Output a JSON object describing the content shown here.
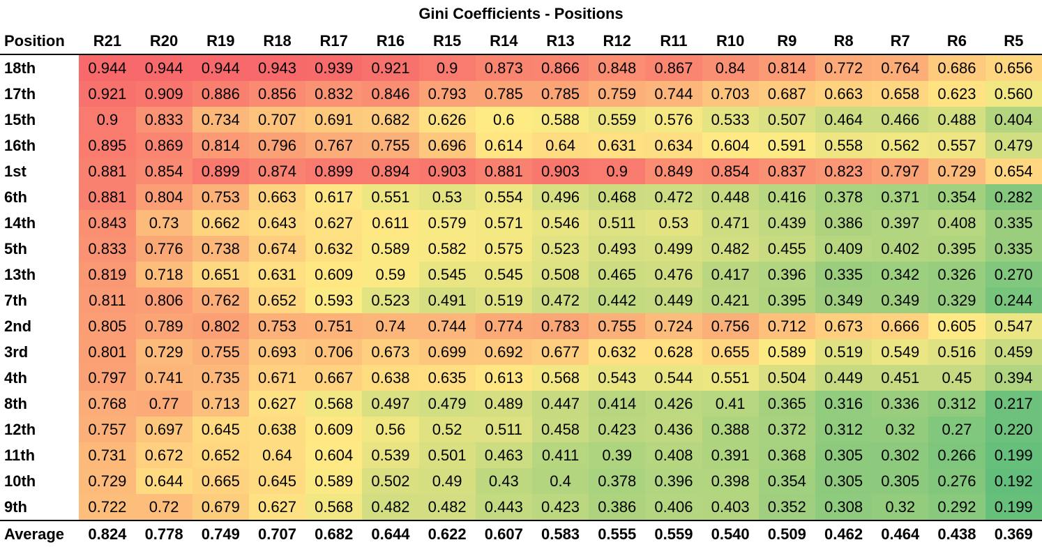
{
  "chart_data": {
    "type": "heatmap",
    "title": "Gini Coefficients - Positions",
    "row_header": "Position",
    "columns": [
      "R21",
      "R20",
      "R19",
      "R18",
      "R17",
      "R16",
      "R15",
      "R14",
      "R13",
      "R12",
      "R11",
      "R10",
      "R9",
      "R8",
      "R7",
      "R6",
      "R5"
    ],
    "rows": [
      {
        "label": "18th",
        "values": [
          "0.944",
          "0.944",
          "0.944",
          "0.943",
          "0.939",
          "0.921",
          "0.9",
          "0.873",
          "0.866",
          "0.848",
          "0.867",
          "0.84",
          "0.814",
          "0.772",
          "0.764",
          "0.686",
          "0.656"
        ]
      },
      {
        "label": "17th",
        "values": [
          "0.921",
          "0.909",
          "0.886",
          "0.856",
          "0.832",
          "0.846",
          "0.793",
          "0.785",
          "0.785",
          "0.759",
          "0.744",
          "0.703",
          "0.687",
          "0.663",
          "0.658",
          "0.623",
          "0.560"
        ]
      },
      {
        "label": "15th",
        "values": [
          "0.9",
          "0.833",
          "0.734",
          "0.707",
          "0.691",
          "0.682",
          "0.626",
          "0.6",
          "0.588",
          "0.559",
          "0.576",
          "0.533",
          "0.507",
          "0.464",
          "0.466",
          "0.488",
          "0.404"
        ]
      },
      {
        "label": "16th",
        "values": [
          "0.895",
          "0.869",
          "0.814",
          "0.796",
          "0.767",
          "0.755",
          "0.696",
          "0.614",
          "0.64",
          "0.631",
          "0.634",
          "0.604",
          "0.591",
          "0.558",
          "0.562",
          "0.557",
          "0.479"
        ]
      },
      {
        "label": "1st",
        "values": [
          "0.881",
          "0.854",
          "0.899",
          "0.874",
          "0.899",
          "0.894",
          "0.903",
          "0.881",
          "0.903",
          "0.9",
          "0.849",
          "0.854",
          "0.837",
          "0.823",
          "0.797",
          "0.729",
          "0.654"
        ]
      },
      {
        "label": "6th",
        "values": [
          "0.881",
          "0.804",
          "0.753",
          "0.663",
          "0.617",
          "0.551",
          "0.53",
          "0.554",
          "0.496",
          "0.468",
          "0.472",
          "0.448",
          "0.416",
          "0.378",
          "0.371",
          "0.354",
          "0.282"
        ]
      },
      {
        "label": "14th",
        "values": [
          "0.843",
          "0.73",
          "0.662",
          "0.643",
          "0.627",
          "0.611",
          "0.579",
          "0.571",
          "0.546",
          "0.511",
          "0.53",
          "0.471",
          "0.439",
          "0.386",
          "0.397",
          "0.408",
          "0.335"
        ]
      },
      {
        "label": "5th",
        "values": [
          "0.833",
          "0.776",
          "0.738",
          "0.674",
          "0.632",
          "0.589",
          "0.582",
          "0.575",
          "0.523",
          "0.493",
          "0.499",
          "0.482",
          "0.455",
          "0.409",
          "0.402",
          "0.395",
          "0.335"
        ]
      },
      {
        "label": "13th",
        "values": [
          "0.819",
          "0.718",
          "0.651",
          "0.631",
          "0.609",
          "0.59",
          "0.545",
          "0.545",
          "0.508",
          "0.465",
          "0.476",
          "0.417",
          "0.396",
          "0.335",
          "0.342",
          "0.326",
          "0.270"
        ]
      },
      {
        "label": "7th",
        "values": [
          "0.811",
          "0.806",
          "0.762",
          "0.652",
          "0.593",
          "0.523",
          "0.491",
          "0.519",
          "0.472",
          "0.442",
          "0.449",
          "0.421",
          "0.395",
          "0.349",
          "0.349",
          "0.329",
          "0.244"
        ]
      },
      {
        "label": "2nd",
        "values": [
          "0.805",
          "0.789",
          "0.802",
          "0.753",
          "0.751",
          "0.74",
          "0.744",
          "0.774",
          "0.783",
          "0.755",
          "0.724",
          "0.756",
          "0.712",
          "0.673",
          "0.666",
          "0.605",
          "0.547"
        ]
      },
      {
        "label": "3rd",
        "values": [
          "0.801",
          "0.729",
          "0.755",
          "0.693",
          "0.706",
          "0.673",
          "0.699",
          "0.692",
          "0.677",
          "0.632",
          "0.628",
          "0.655",
          "0.589",
          "0.519",
          "0.549",
          "0.516",
          "0.459"
        ]
      },
      {
        "label": "4th",
        "values": [
          "0.797",
          "0.741",
          "0.735",
          "0.671",
          "0.667",
          "0.638",
          "0.635",
          "0.613",
          "0.568",
          "0.543",
          "0.544",
          "0.551",
          "0.504",
          "0.449",
          "0.451",
          "0.45",
          "0.394"
        ]
      },
      {
        "label": "8th",
        "values": [
          "0.768",
          "0.77",
          "0.713",
          "0.627",
          "0.568",
          "0.497",
          "0.479",
          "0.489",
          "0.447",
          "0.414",
          "0.426",
          "0.41",
          "0.365",
          "0.316",
          "0.336",
          "0.312",
          "0.217"
        ]
      },
      {
        "label": "12th",
        "values": [
          "0.757",
          "0.697",
          "0.645",
          "0.638",
          "0.609",
          "0.56",
          "0.52",
          "0.511",
          "0.458",
          "0.423",
          "0.436",
          "0.388",
          "0.372",
          "0.312",
          "0.32",
          "0.27",
          "0.220"
        ]
      },
      {
        "label": "11th",
        "values": [
          "0.731",
          "0.672",
          "0.652",
          "0.64",
          "0.604",
          "0.539",
          "0.501",
          "0.463",
          "0.411",
          "0.39",
          "0.408",
          "0.391",
          "0.368",
          "0.305",
          "0.302",
          "0.266",
          "0.199"
        ]
      },
      {
        "label": "10th",
        "values": [
          "0.729",
          "0.644",
          "0.665",
          "0.645",
          "0.589",
          "0.502",
          "0.49",
          "0.43",
          "0.4",
          "0.378",
          "0.396",
          "0.398",
          "0.354",
          "0.305",
          "0.305",
          "0.276",
          "0.192"
        ]
      },
      {
        "label": "9th",
        "values": [
          "0.722",
          "0.72",
          "0.679",
          "0.627",
          "0.568",
          "0.482",
          "0.482",
          "0.443",
          "0.423",
          "0.386",
          "0.406",
          "0.403",
          "0.352",
          "0.308",
          "0.32",
          "0.292",
          "0.199"
        ]
      }
    ],
    "summary_row": {
      "label": "Average",
      "values": [
        "0.824",
        "0.778",
        "0.749",
        "0.707",
        "0.682",
        "0.644",
        "0.622",
        "0.607",
        "0.583",
        "0.555",
        "0.559",
        "0.540",
        "0.509",
        "0.462",
        "0.464",
        "0.438",
        "0.369"
      ]
    },
    "color_scale": {
      "low": "#63be7b",
      "mid": "#ffeb84",
      "high": "#f8696b"
    },
    "grid": false,
    "legend": "none"
  }
}
